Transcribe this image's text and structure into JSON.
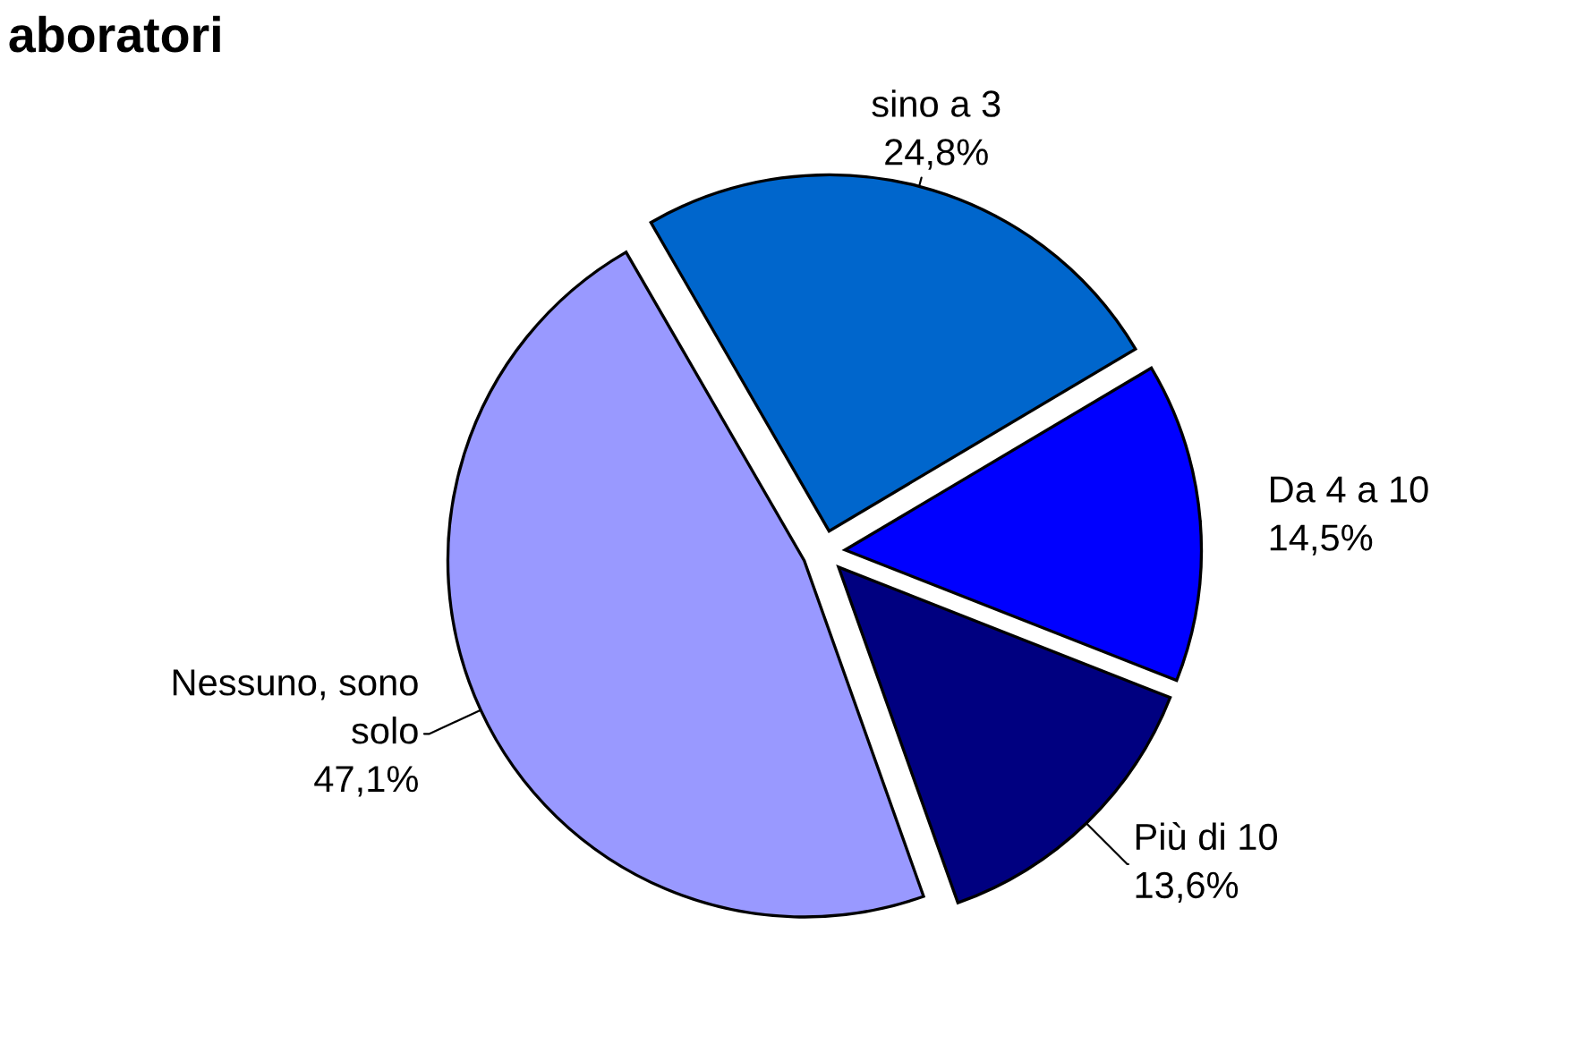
{
  "chart_data": {
    "type": "pie",
    "title": "aboratori",
    "categories": [
      "sino a 3",
      "Da 4 a 10",
      "Più di 10",
      "Nessuno, sono\nsolo"
    ],
    "values": [
      24.8,
      14.5,
      13.6,
      47.1
    ],
    "value_labels": [
      "24,8%",
      "14,5%",
      "13,6%",
      "47,1%"
    ],
    "colors": [
      "#0066cc",
      "#0000ff",
      "#000080",
      "#9999ff"
    ],
    "legend": false
  }
}
